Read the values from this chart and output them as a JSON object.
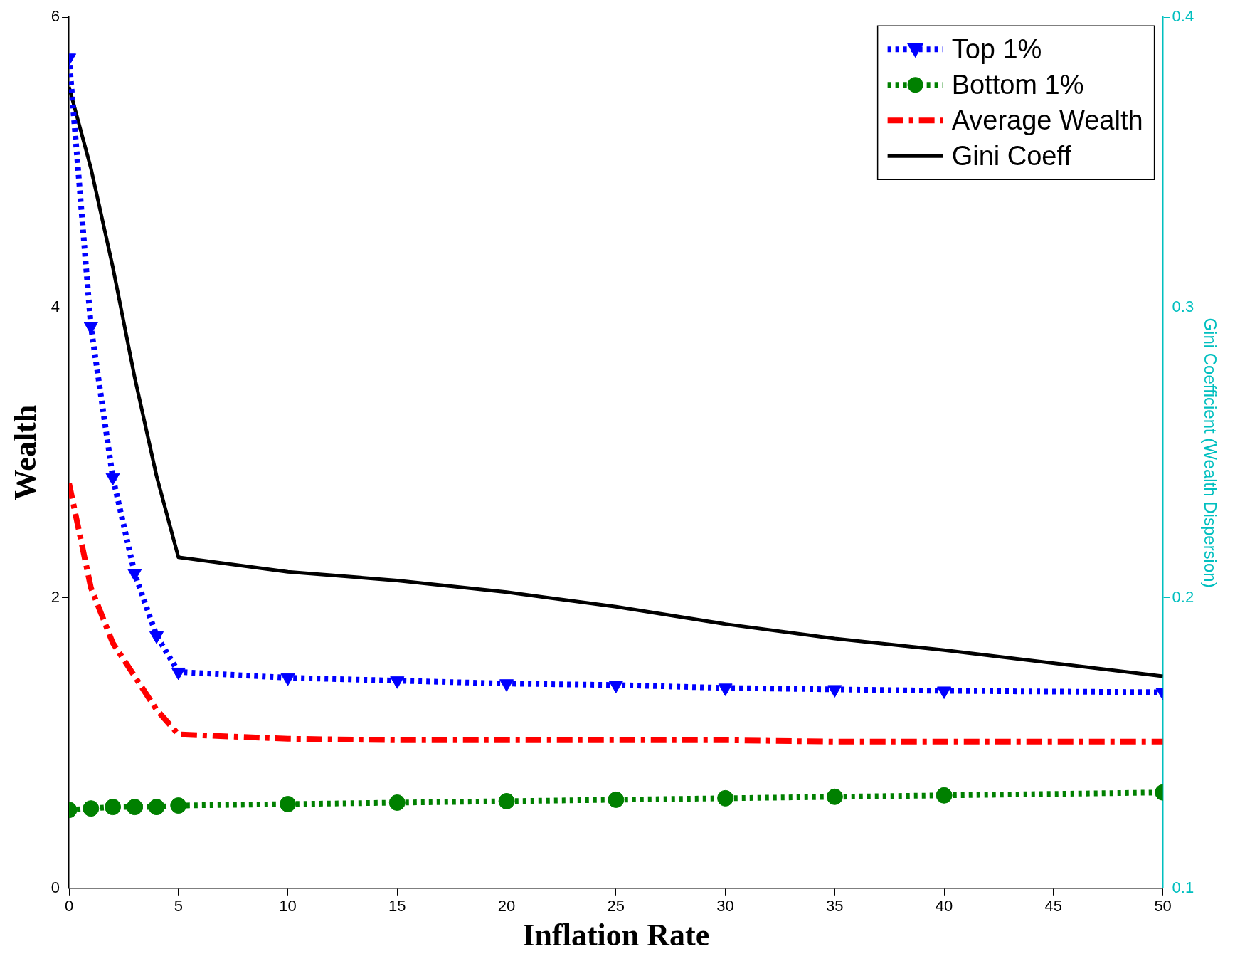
{
  "chart_data": {
    "type": "line",
    "xlabel": "Inflation Rate",
    "ylabel": "Wealth",
    "y2label": "Gini Coefficient (Wealth Dispersion)",
    "x": [
      0,
      1,
      2,
      3,
      4,
      5,
      10,
      15,
      20,
      25,
      30,
      35,
      40,
      50
    ],
    "series": [
      {
        "name": "Top 1%",
        "color": "#0000ff",
        "marker": "triangle",
        "line_style": "dotted",
        "values": [
          5.72,
          3.87,
          2.83,
          2.17,
          1.74,
          1.49,
          1.45,
          1.43,
          1.41,
          1.4,
          1.38,
          1.37,
          1.36,
          1.35
        ]
      },
      {
        "name": "Bottom 1%",
        "color": "#008000",
        "marker": "circle",
        "line_style": "dotted",
        "values": [
          0.54,
          0.55,
          0.56,
          0.56,
          0.56,
          0.57,
          0.58,
          0.59,
          0.6,
          0.61,
          0.62,
          0.63,
          0.64,
          0.66
        ]
      },
      {
        "name": "Average Wealth",
        "color": "#ff0000",
        "marker": "none",
        "line_style": "dashed",
        "values": [
          2.79,
          2.07,
          1.69,
          1.46,
          1.23,
          1.06,
          1.03,
          1.02,
          1.02,
          1.02,
          1.02,
          1.01,
          1.01,
          1.01
        ]
      },
      {
        "name": "Gini Coeff",
        "color": "#000000",
        "marker": "none",
        "line_style": "solid",
        "axis": "y2",
        "values": [
          0.376,
          0.348,
          0.314,
          0.276,
          0.242,
          0.214,
          0.209,
          0.206,
          0.202,
          0.197,
          0.191,
          0.186,
          0.182,
          0.173
        ]
      }
    ],
    "xlim": [
      0,
      50
    ],
    "xticks": [
      0,
      5,
      10,
      15,
      20,
      25,
      30,
      35,
      40,
      45,
      50
    ],
    "ylim": [
      0,
      6
    ],
    "yticks": [
      0,
      2,
      4,
      6
    ],
    "y2lim": [
      0.1,
      0.4
    ],
    "y2ticks": [
      0.1,
      0.2,
      0.3,
      0.4
    ],
    "grid": false,
    "legend": "top right"
  }
}
